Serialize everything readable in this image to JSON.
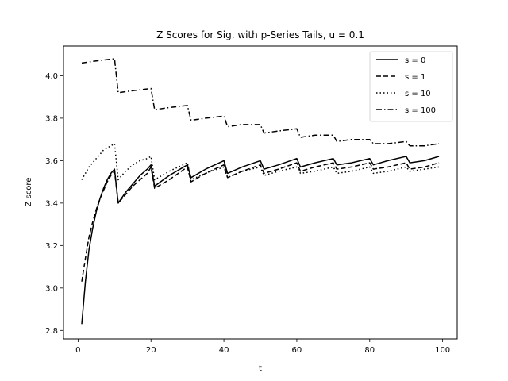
{
  "chart_data": {
    "type": "line",
    "title": "Z Scores for Sig. with p-Series Tails, u = 0.1",
    "xlabel": "t",
    "ylabel": "Z score",
    "xlim": [
      -4,
      104
    ],
    "ylim": [
      2.76,
      4.14
    ],
    "xticks": [
      0,
      20,
      40,
      60,
      80,
      100
    ],
    "yticks": [
      2.8,
      3.0,
      3.2,
      3.4,
      3.6,
      3.8,
      4.0
    ],
    "grid": false,
    "legend_position": "top-right",
    "series": [
      {
        "name": "s = 0",
        "style": "solid",
        "points": [
          [
            1,
            2.83
          ],
          [
            2,
            3.03
          ],
          [
            3,
            3.18
          ],
          [
            4,
            3.28
          ],
          [
            5,
            3.36
          ],
          [
            6,
            3.42
          ],
          [
            7,
            3.47
          ],
          [
            8,
            3.51
          ],
          [
            9,
            3.54
          ],
          [
            10,
            3.56
          ],
          [
            11,
            3.4
          ],
          [
            13,
            3.45
          ],
          [
            15,
            3.49
          ],
          [
            17,
            3.53
          ],
          [
            19,
            3.56
          ],
          [
            20,
            3.58
          ],
          [
            21,
            3.48
          ],
          [
            25,
            3.53
          ],
          [
            30,
            3.58
          ],
          [
            31,
            3.52
          ],
          [
            35,
            3.56
          ],
          [
            40,
            3.6
          ],
          [
            41,
            3.54
          ],
          [
            45,
            3.57
          ],
          [
            50,
            3.6
          ],
          [
            51,
            3.56
          ],
          [
            55,
            3.58
          ],
          [
            60,
            3.61
          ],
          [
            61,
            3.57
          ],
          [
            65,
            3.59
          ],
          [
            70,
            3.61
          ],
          [
            71,
            3.58
          ],
          [
            75,
            3.59
          ],
          [
            80,
            3.61
          ],
          [
            81,
            3.58
          ],
          [
            85,
            3.6
          ],
          [
            90,
            3.62
          ],
          [
            91,
            3.59
          ],
          [
            95,
            3.6
          ],
          [
            99,
            3.62
          ]
        ]
      },
      {
        "name": "s = 1",
        "style": "dashed",
        "points": [
          [
            1,
            3.03
          ],
          [
            2,
            3.14
          ],
          [
            3,
            3.24
          ],
          [
            4,
            3.31
          ],
          [
            5,
            3.37
          ],
          [
            6,
            3.42
          ],
          [
            7,
            3.46
          ],
          [
            8,
            3.5
          ],
          [
            9,
            3.53
          ],
          [
            10,
            3.55
          ],
          [
            11,
            3.4
          ],
          [
            13,
            3.44
          ],
          [
            15,
            3.48
          ],
          [
            17,
            3.51
          ],
          [
            19,
            3.54
          ],
          [
            20,
            3.57
          ],
          [
            21,
            3.47
          ],
          [
            25,
            3.51
          ],
          [
            30,
            3.57
          ],
          [
            31,
            3.5
          ],
          [
            35,
            3.54
          ],
          [
            40,
            3.58
          ],
          [
            41,
            3.52
          ],
          [
            45,
            3.55
          ],
          [
            50,
            3.58
          ],
          [
            51,
            3.54
          ],
          [
            55,
            3.56
          ],
          [
            60,
            3.59
          ],
          [
            61,
            3.55
          ],
          [
            65,
            3.57
          ],
          [
            70,
            3.59
          ],
          [
            71,
            3.56
          ],
          [
            75,
            3.57
          ],
          [
            80,
            3.59
          ],
          [
            81,
            3.56
          ],
          [
            85,
            3.57
          ],
          [
            90,
            3.59
          ],
          [
            91,
            3.56
          ],
          [
            95,
            3.57
          ],
          [
            99,
            3.59
          ]
        ]
      },
      {
        "name": "s = 10",
        "style": "dotted",
        "points": [
          [
            1,
            3.51
          ],
          [
            2,
            3.54
          ],
          [
            3,
            3.57
          ],
          [
            4,
            3.59
          ],
          [
            5,
            3.61
          ],
          [
            6,
            3.63
          ],
          [
            7,
            3.65
          ],
          [
            8,
            3.66
          ],
          [
            9,
            3.67
          ],
          [
            10,
            3.68
          ],
          [
            11,
            3.51
          ],
          [
            13,
            3.55
          ],
          [
            15,
            3.58
          ],
          [
            17,
            3.6
          ],
          [
            19,
            3.61
          ],
          [
            20,
            3.62
          ],
          [
            21,
            3.51
          ],
          [
            25,
            3.55
          ],
          [
            30,
            3.59
          ],
          [
            31,
            3.51
          ],
          [
            35,
            3.54
          ],
          [
            40,
            3.57
          ],
          [
            41,
            3.52
          ],
          [
            45,
            3.55
          ],
          [
            50,
            3.57
          ],
          [
            51,
            3.53
          ],
          [
            55,
            3.55
          ],
          [
            60,
            3.57
          ],
          [
            61,
            3.54
          ],
          [
            65,
            3.55
          ],
          [
            70,
            3.57
          ],
          [
            71,
            3.54
          ],
          [
            75,
            3.55
          ],
          [
            80,
            3.57
          ],
          [
            81,
            3.54
          ],
          [
            85,
            3.55
          ],
          [
            90,
            3.57
          ],
          [
            91,
            3.55
          ],
          [
            95,
            3.56
          ],
          [
            99,
            3.57
          ]
        ]
      },
      {
        "name": "s = 100",
        "style": "dashdot",
        "points": [
          [
            1,
            4.06
          ],
          [
            5,
            4.07
          ],
          [
            10,
            4.08
          ],
          [
            11,
            3.92
          ],
          [
            15,
            3.93
          ],
          [
            20,
            3.94
          ],
          [
            21,
            3.84
          ],
          [
            25,
            3.85
          ],
          [
            30,
            3.86
          ],
          [
            31,
            3.79
          ],
          [
            35,
            3.8
          ],
          [
            40,
            3.81
          ],
          [
            41,
            3.76
          ],
          [
            45,
            3.77
          ],
          [
            50,
            3.77
          ],
          [
            51,
            3.73
          ],
          [
            55,
            3.74
          ],
          [
            60,
            3.75
          ],
          [
            61,
            3.71
          ],
          [
            65,
            3.72
          ],
          [
            70,
            3.72
          ],
          [
            71,
            3.69
          ],
          [
            75,
            3.7
          ],
          [
            80,
            3.7
          ],
          [
            81,
            3.68
          ],
          [
            85,
            3.68
          ],
          [
            90,
            3.69
          ],
          [
            91,
            3.67
          ],
          [
            95,
            3.67
          ],
          [
            99,
            3.68
          ]
        ]
      }
    ]
  }
}
